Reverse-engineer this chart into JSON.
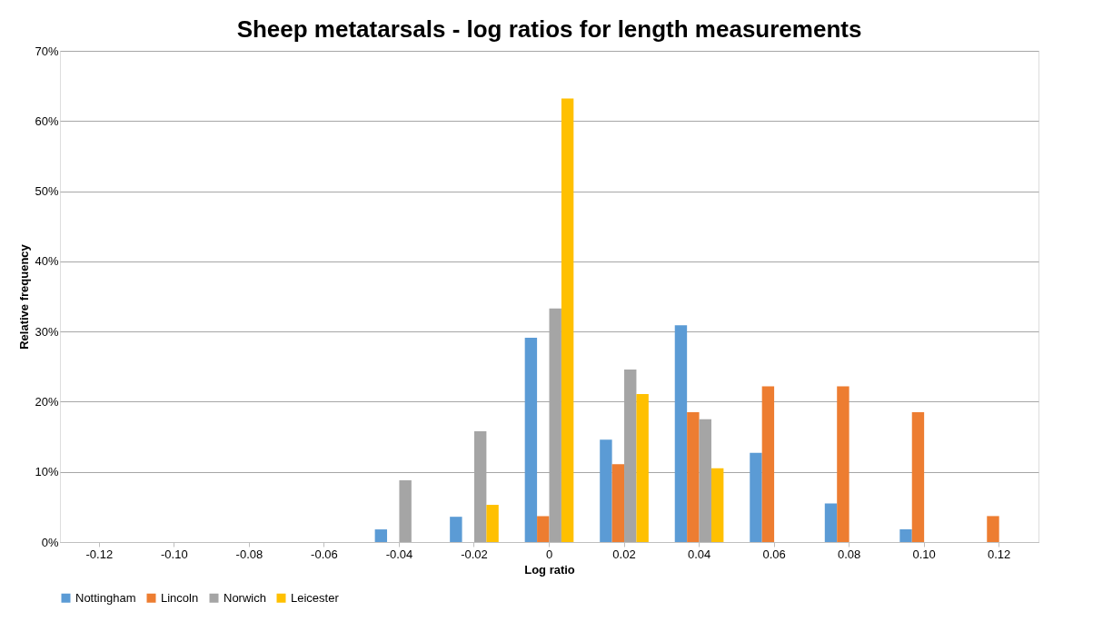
{
  "chart_data": {
    "type": "bar",
    "title": "Sheep metatarsals - log ratios for length measurements",
    "xlabel": "Log ratio",
    "ylabel": "Relative frequency",
    "categories": [
      "-0.12",
      "-0.10",
      "-0.08",
      "-0.06",
      "-0.04",
      "-0.02",
      "0",
      "0.02",
      "0.04",
      "0.06",
      "0.08",
      "0.10",
      "0.12"
    ],
    "series": [
      {
        "name": "Nottingham",
        "color": "#5b9bd5",
        "values": [
          0,
          0,
          0,
          0,
          1.8,
          3.6,
          29.1,
          14.6,
          30.9,
          12.7,
          5.5,
          1.8,
          0
        ]
      },
      {
        "name": "Lincoln",
        "color": "#ed7d31",
        "values": [
          0,
          0,
          0,
          0,
          0,
          0,
          3.7,
          11.1,
          18.5,
          22.2,
          22.2,
          18.5,
          3.7
        ]
      },
      {
        "name": "Norwich",
        "color": "#a5a5a5",
        "values": [
          0,
          0,
          0,
          0,
          8.8,
          15.8,
          33.3,
          24.6,
          17.5,
          0,
          0,
          0,
          0
        ]
      },
      {
        "name": "Leicester",
        "color": "#ffc000",
        "values": [
          0,
          0,
          0,
          0,
          0,
          5.3,
          63.2,
          21.1,
          10.5,
          0,
          0,
          0,
          0
        ]
      }
    ],
    "ylim": [
      0,
      70
    ],
    "yticks": [
      {
        "value": 0,
        "label": "0%"
      },
      {
        "value": 10,
        "label": "10%"
      },
      {
        "value": 20,
        "label": "20%"
      },
      {
        "value": 30,
        "label": "30%"
      },
      {
        "value": 40,
        "label": "40%"
      },
      {
        "value": 50,
        "label": "50%"
      },
      {
        "value": 60,
        "label": "60%"
      },
      {
        "value": 70,
        "label": "70%"
      }
    ],
    "grid": "y",
    "legend": "bottom"
  }
}
